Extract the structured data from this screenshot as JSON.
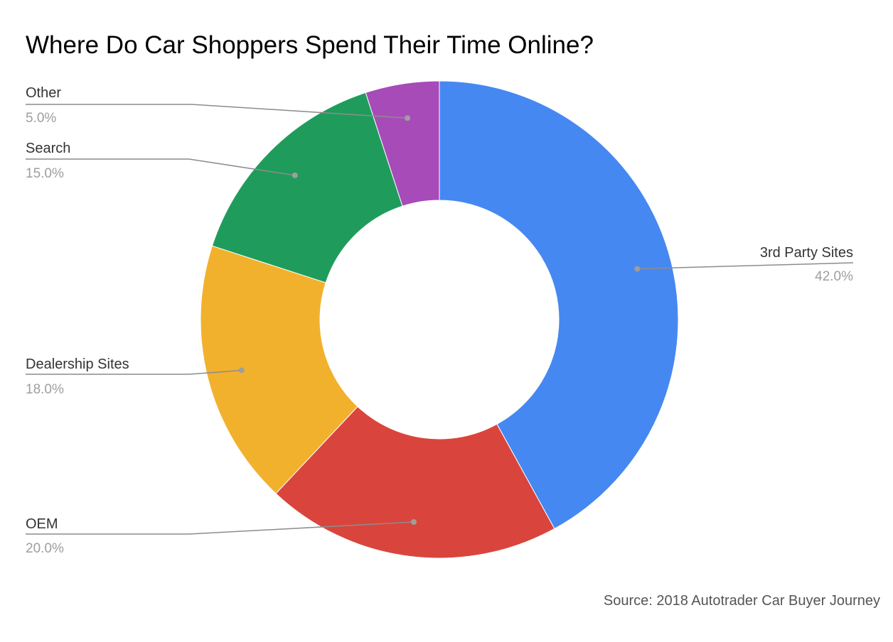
{
  "chart_data": {
    "type": "pie",
    "title": "Where Do Car Shoppers Spend Their Time Online?",
    "donut": true,
    "slices": [
      {
        "label": "3rd Party Sites",
        "value": 42.0,
        "display": "42.0%",
        "color": "#4688f1"
      },
      {
        "label": "OEM",
        "value": 20.0,
        "display": "20.0%",
        "color": "#d9453c"
      },
      {
        "label": "Dealership Sites",
        "value": 18.0,
        "display": "18.0%",
        "color": "#f2b12d"
      },
      {
        "label": "Search",
        "value": 15.0,
        "display": "15.0%",
        "color": "#1f9c5b"
      },
      {
        "label": "Other",
        "value": 5.0,
        "display": "5.0%",
        "color": "#a64bb8"
      }
    ],
    "legend": "none"
  },
  "source": "Source: 2018 Autotrader Car Buyer Journey"
}
